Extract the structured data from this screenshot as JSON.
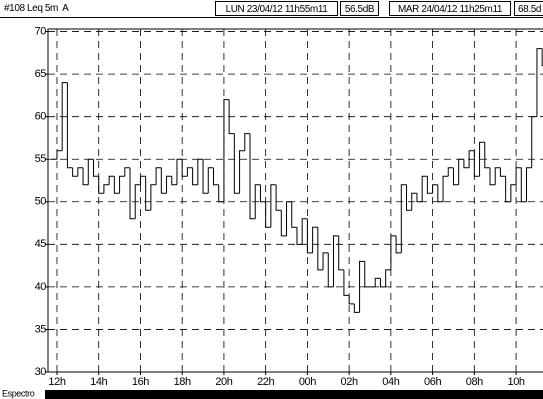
{
  "header": {
    "title": "#108 Leq 5m  A",
    "start": "LUN 23/04/12 11h55m11",
    "start_level": "56.5dB",
    "end": "MAR 24/04/12 11h25m11",
    "end_level": "68.5d"
  },
  "footer": {
    "tab": "Espectro"
  },
  "chart_data": {
    "type": "step",
    "x": [
      11.75,
      12,
      12.25,
      12.5,
      12.75,
      13,
      13.25,
      13.5,
      13.75,
      14,
      14.25,
      14.5,
      14.75,
      15,
      15.25,
      15.5,
      15.75,
      16,
      16.25,
      16.5,
      16.75,
      17,
      17.25,
      17.5,
      17.75,
      18,
      18.25,
      18.5,
      18.75,
      19,
      19.25,
      19.5,
      19.75,
      20,
      20.25,
      20.5,
      20.75,
      21,
      21.25,
      21.5,
      21.75,
      22,
      22.25,
      22.5,
      22.75,
      23,
      23.25,
      23.5,
      23.75,
      24,
      24.25,
      24.5,
      24.75,
      25,
      25.25,
      25.5,
      25.75,
      26,
      26.25,
      26.5,
      26.75,
      27,
      27.25,
      27.5,
      27.75,
      28,
      28.25,
      28.5,
      28.75,
      29,
      29.25,
      29.5,
      29.75,
      30,
      30.25,
      30.5,
      30.75,
      31,
      31.25,
      31.5,
      31.75,
      32,
      32.25,
      32.5,
      32.75,
      33,
      33.25,
      33.5,
      33.75,
      34,
      34.25,
      34.5,
      34.75,
      35,
      35.25
    ],
    "values": [
      55,
      56,
      64,
      54,
      53,
      54,
      52,
      55,
      53,
      51,
      52,
      53,
      51,
      53,
      54,
      48,
      52,
      53,
      49,
      52,
      54,
      51,
      53,
      52,
      55,
      53,
      54,
      52,
      55,
      51,
      54,
      52,
      50,
      62,
      58,
      51,
      56,
      58,
      48,
      52,
      50,
      47,
      52,
      49,
      46,
      50,
      47,
      45,
      48,
      44,
      47,
      42,
      44,
      40,
      46,
      42,
      39,
      38,
      37,
      43,
      40,
      40,
      41,
      40,
      42,
      46,
      44,
      52,
      49,
      51,
      50,
      53,
      51,
      52,
      50,
      53,
      54,
      52,
      55,
      54,
      56,
      53,
      57,
      54,
      52,
      54,
      53,
      50,
      52,
      54,
      50,
      54,
      60,
      68,
      66
    ],
    "color": "#000000",
    "xlim": [
      11.57,
      35.29
    ],
    "xticks": [
      {
        "value": 12,
        "label": "12h"
      },
      {
        "value": 14,
        "label": "14h"
      },
      {
        "value": 16,
        "label": "16h"
      },
      {
        "value": 18,
        "label": "18h"
      },
      {
        "value": 20,
        "label": "20h"
      },
      {
        "value": 22,
        "label": "22h"
      },
      {
        "value": 24,
        "label": "00h"
      },
      {
        "value": 26,
        "label": "02h"
      },
      {
        "value": 28,
        "label": "04h"
      },
      {
        "value": 30,
        "label": "06h"
      },
      {
        "value": 32,
        "label": "08h"
      },
      {
        "value": 34,
        "label": "10h"
      }
    ],
    "ylim": [
      30,
      70.3
    ],
    "yticks": [
      30,
      35,
      40,
      45,
      50,
      55,
      60,
      65,
      70
    ],
    "grid": true
  }
}
